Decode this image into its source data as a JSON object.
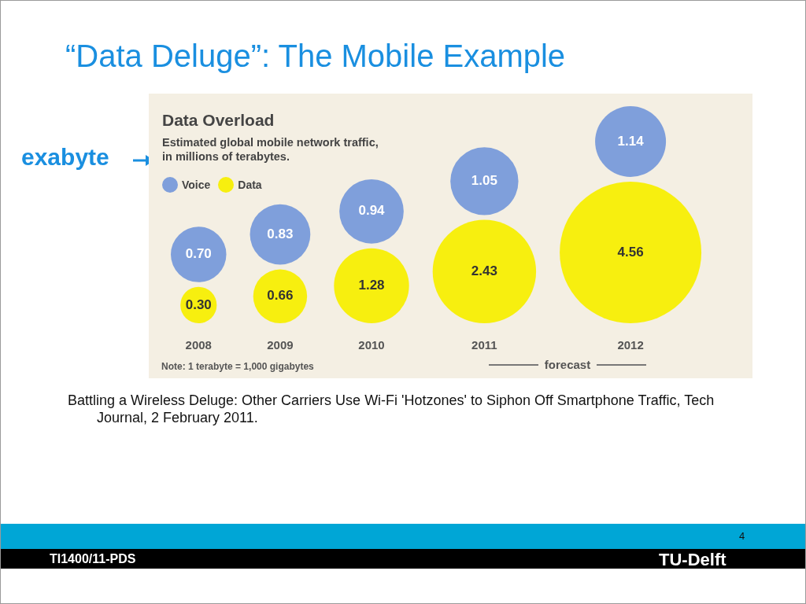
{
  "chart_data": {
    "type": "other",
    "title": "Data Overload",
    "subtitle": "Estimated global mobile network traffic, in millions of terabytes.",
    "categories": [
      "2008",
      "2009",
      "2010",
      "2011",
      "2012"
    ],
    "series": [
      {
        "name": "Voice",
        "color": "#7f9fdb",
        "values": [
          0.7,
          0.83,
          0.94,
          1.05,
          1.14
        ],
        "value_labels": [
          "0.70",
          "0.83",
          "0.94",
          "1.05",
          "1.14"
        ]
      },
      {
        "name": "Data",
        "color": "#f7ef0f",
        "values": [
          0.3,
          0.66,
          1.28,
          2.43,
          4.56
        ],
        "value_labels": [
          "0.30",
          "0.66",
          "1.28",
          "2.43",
          "4.56"
        ]
      }
    ],
    "legend": "top left",
    "annotations": [
      "“Data Deluge”: The Mobile Example",
      "exabyte",
      "Note: 1 terabyte = 1,000 gigabytes",
      "forecast",
      "Battling a Wireless Deluge: Other Carriers Use Wi-Fi 'Hotzones' to Siphon Off Smartphone Traffic, Tech Journal, 2 February 2011.",
      "4",
      "TI1400/11-PDS",
      "TU-Delft"
    ]
  }
}
